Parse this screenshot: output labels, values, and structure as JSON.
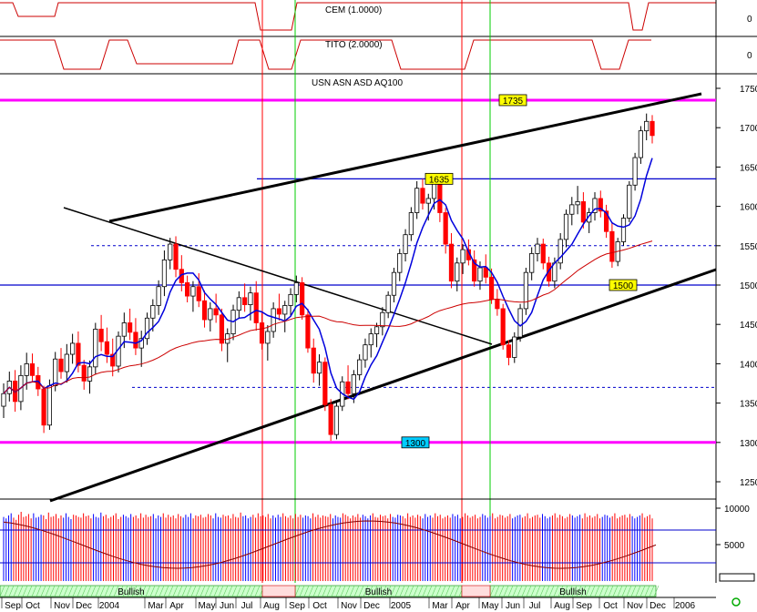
{
  "indicators": {
    "cem": {
      "label": "CEM (1.0000)",
      "axis_value": "0"
    },
    "tito": {
      "label": "TITO (2.0000)",
      "axis_value": "0"
    }
  },
  "chart_data": {
    "type": "candlestick",
    "symbol_label": "USN ASN ASD AQ100",
    "y_ticks": [
      1250,
      1300,
      1350,
      1400,
      1450,
      1500,
      1550,
      1600,
      1650,
      1700,
      1750
    ],
    "ylim": [
      1195,
      1760
    ],
    "x_ticks": [
      "Sep",
      "Oct",
      "Nov",
      "Dec",
      "2004",
      "Mar",
      "Apr",
      "May",
      "Jun",
      "Jul",
      "Aug",
      "Sep",
      "Oct",
      "Nov",
      "Dec",
      "2005",
      "Mar",
      "Apr",
      "May",
      "Jun",
      "Jul",
      "Aug",
      "Sep",
      "Oct",
      "Nov",
      "Dec",
      "2006"
    ],
    "horizontal_levels": [
      {
        "label": "1735",
        "value": 1735,
        "color": "#ff00ff"
      },
      {
        "label": "1635",
        "value": 1635,
        "color": "#0000cc"
      },
      {
        "label": "1500",
        "value": 1500,
        "color": "#0000cc"
      },
      {
        "label": "1300",
        "value": 1300,
        "color": "#ff00ff"
      }
    ],
    "dashed_levels": [
      1550,
      1370
    ],
    "signal": {
      "label": "Bullish",
      "zones": [
        "Bullish",
        "Bullish",
        "Bullish"
      ]
    },
    "volume_ticks": [
      10000,
      5000
    ],
    "volume_ylim": [
      0,
      10000
    ],
    "volume_reference": 7000,
    "volume_values": [
      8800,
      8600,
      9000,
      9300,
      8700,
      8400,
      9100,
      9500,
      8800,
      8900,
      9200,
      8600,
      9300,
      8700,
      8800,
      9100,
      9000,
      8500,
      9400,
      8800,
      8900,
      9200,
      8600,
      9000,
      8700,
      9300,
      8800,
      8500,
      9100,
      9000,
      8800,
      8700,
      9300,
      8900,
      9000,
      8600,
      9200,
      8800,
      8700,
      9400,
      8900,
      9100,
      8600,
      8800,
      9000,
      9300,
      8500,
      8800,
      9100,
      8900,
      8700,
      9200,
      8800,
      9000,
      8600,
      9300,
      8700,
      9100,
      8800,
      8900,
      9200,
      8600,
      9000,
      8800,
      9300,
      8700,
      9100,
      8800,
      9000,
      8600,
      9200,
      8900,
      8700,
      9100,
      8800,
      9300,
      8600,
      9000,
      8900,
      9100,
      8700,
      8800,
      9200,
      9000,
      8600,
      9300,
      8800,
      8700,
      9100,
      8900,
      9000,
      8600,
      9200,
      8800,
      8700,
      9400,
      8900,
      9000,
      8600,
      8800,
      9100,
      8700,
      9300,
      8900,
      9000,
      8800,
      9200,
      8600,
      9000,
      8700,
      9100,
      8800,
      9300,
      8900,
      8700,
      9000,
      8600,
      9200,
      8800,
      9100,
      8700,
      9000,
      8900,
      8600,
      9300,
      8800,
      9100,
      8700,
      9000,
      8900,
      8800,
      9200,
      8600,
      9000,
      8800,
      8700,
      9300,
      9100,
      8900,
      8600,
      9000,
      8800,
      9200,
      8700,
      9100,
      8900,
      8600,
      9000,
      9300,
      8800,
      8700,
      9100,
      8900,
      9000,
      8600,
      9200,
      8800,
      8700,
      9100,
      9000,
      8900,
      8600,
      9300,
      8800,
      9000,
      8700,
      9100,
      8900,
      8600,
      9200,
      8800,
      9000,
      8700,
      9300,
      8900,
      9100,
      8600,
      8800,
      9000,
      8700,
      9200,
      8900,
      9100,
      8600,
      8800,
      9300,
      9000,
      8700,
      8900,
      9100,
      8600,
      8800,
      9200,
      9000,
      8700,
      8900,
      9300,
      8600,
      8800,
      9100,
      9000,
      8700,
      8900,
      9200,
      8600,
      8800,
      9000,
      9100,
      8700,
      8900,
      9300,
      8600,
      8800,
      9000,
      9100,
      8700,
      9200,
      8900,
      8600,
      8800,
      9000,
      9300,
      8700,
      9100,
      8900,
      8600,
      8800,
      9200,
      9000,
      8700,
      8900,
      9100,
      8600,
      9300,
      8800,
      9000,
      8700,
      8900,
      9200,
      8600,
      8800,
      9100,
      9000,
      8700,
      8900,
      9300,
      8600,
      8800,
      9000,
      9100,
      8700,
      9200,
      8900,
      8600,
      8800,
      9000,
      9300,
      8700,
      8900,
      9100,
      8600
    ],
    "weekly": [
      [
        1346,
        1375,
        1331,
        1362
      ],
      [
        1362,
        1390,
        1352,
        1378
      ],
      [
        1378,
        1392,
        1339,
        1352
      ],
      [
        1352,
        1398,
        1341,
        1385
      ],
      [
        1385,
        1414,
        1367,
        1400
      ],
      [
        1400,
        1413,
        1378,
        1385
      ],
      [
        1385,
        1396,
        1359,
        1368
      ],
      [
        1368,
        1372,
        1312,
        1322
      ],
      [
        1322,
        1380,
        1316,
        1372
      ],
      [
        1372,
        1415,
        1365,
        1406
      ],
      [
        1406,
        1420,
        1381,
        1390
      ],
      [
        1390,
        1425,
        1376,
        1412
      ],
      [
        1412,
        1438,
        1400,
        1426
      ],
      [
        1426,
        1441,
        1389,
        1398
      ],
      [
        1398,
        1405,
        1367,
        1378
      ],
      [
        1378,
        1404,
        1362,
        1396
      ],
      [
        1396,
        1452,
        1386,
        1444
      ],
      [
        1444,
        1462,
        1416,
        1428
      ],
      [
        1428,
        1446,
        1401,
        1412
      ],
      [
        1412,
        1432,
        1384,
        1397
      ],
      [
        1397,
        1441,
        1389,
        1435
      ],
      [
        1435,
        1465,
        1420,
        1452
      ],
      [
        1452,
        1470,
        1430,
        1440
      ],
      [
        1440,
        1458,
        1411,
        1420
      ],
      [
        1420,
        1442,
        1396,
        1432
      ],
      [
        1432,
        1465,
        1424,
        1458
      ],
      [
        1458,
        1482,
        1441,
        1474
      ],
      [
        1474,
        1506,
        1462,
        1498
      ],
      [
        1498,
        1544,
        1486,
        1532
      ],
      [
        1532,
        1560,
        1520,
        1552
      ],
      [
        1552,
        1562,
        1510,
        1520
      ],
      [
        1520,
        1538,
        1492,
        1503
      ],
      [
        1503,
        1512,
        1478,
        1486
      ],
      [
        1486,
        1505,
        1466,
        1498
      ],
      [
        1498,
        1515,
        1472,
        1480
      ],
      [
        1480,
        1493,
        1446,
        1456
      ],
      [
        1456,
        1478,
        1441,
        1470
      ],
      [
        1470,
        1489,
        1452,
        1462
      ],
      [
        1462,
        1470,
        1416,
        1426
      ],
      [
        1426,
        1445,
        1402,
        1438
      ],
      [
        1438,
        1475,
        1430,
        1468
      ],
      [
        1468,
        1492,
        1457,
        1484
      ],
      [
        1484,
        1502,
        1466,
        1475
      ],
      [
        1475,
        1498,
        1455,
        1490
      ],
      [
        1490,
        1505,
        1442,
        1452
      ],
      [
        1452,
        1465,
        1418,
        1426
      ],
      [
        1426,
        1449,
        1404,
        1441
      ],
      [
        1441,
        1478,
        1433,
        1470
      ],
      [
        1470,
        1489,
        1455,
        1463
      ],
      [
        1463,
        1480,
        1440,
        1474
      ],
      [
        1474,
        1496,
        1461,
        1488
      ],
      [
        1488,
        1512,
        1478,
        1503
      ],
      [
        1503,
        1510,
        1456,
        1462
      ],
      [
        1462,
        1470,
        1414,
        1420
      ],
      [
        1420,
        1432,
        1376,
        1388
      ],
      [
        1388,
        1412,
        1372,
        1402
      ],
      [
        1402,
        1408,
        1340,
        1348
      ],
      [
        1348,
        1355,
        1302,
        1310
      ],
      [
        1310,
        1352,
        1304,
        1346
      ],
      [
        1346,
        1384,
        1340,
        1377
      ],
      [
        1377,
        1398,
        1355,
        1362
      ],
      [
        1362,
        1392,
        1350,
        1386
      ],
      [
        1386,
        1412,
        1379,
        1405
      ],
      [
        1405,
        1432,
        1395,
        1424
      ],
      [
        1424,
        1445,
        1408,
        1438
      ],
      [
        1438,
        1452,
        1421,
        1447
      ],
      [
        1447,
        1472,
        1436,
        1465
      ],
      [
        1465,
        1492,
        1458,
        1487
      ],
      [
        1487,
        1522,
        1478,
        1516
      ],
      [
        1516,
        1546,
        1505,
        1540
      ],
      [
        1540,
        1571,
        1530,
        1564
      ],
      [
        1564,
        1599,
        1556,
        1592
      ],
      [
        1592,
        1632,
        1584,
        1623
      ],
      [
        1623,
        1635,
        1596,
        1604
      ],
      [
        1604,
        1616,
        1582,
        1610
      ],
      [
        1610,
        1638,
        1596,
        1630
      ],
      [
        1630,
        1640,
        1580,
        1592
      ],
      [
        1592,
        1598,
        1540,
        1552
      ],
      [
        1552,
        1566,
        1496,
        1505
      ],
      [
        1505,
        1535,
        1492,
        1528
      ],
      [
        1528,
        1552,
        1514,
        1545
      ],
      [
        1545,
        1558,
        1525,
        1532
      ],
      [
        1532,
        1544,
        1498,
        1505
      ],
      [
        1505,
        1530,
        1494,
        1522
      ],
      [
        1522,
        1539,
        1502,
        1510
      ],
      [
        1510,
        1521,
        1476,
        1482
      ],
      [
        1482,
        1495,
        1461,
        1470
      ],
      [
        1470,
        1476,
        1418,
        1424
      ],
      [
        1424,
        1430,
        1398,
        1408
      ],
      [
        1408,
        1440,
        1401,
        1434
      ],
      [
        1434,
        1476,
        1428,
        1470
      ],
      [
        1470,
        1522,
        1462,
        1516
      ],
      [
        1516,
        1548,
        1506,
        1540
      ],
      [
        1540,
        1560,
        1530,
        1552
      ],
      [
        1552,
        1559,
        1520,
        1528
      ],
      [
        1528,
        1536,
        1498,
        1505
      ],
      [
        1505,
        1535,
        1496,
        1528
      ],
      [
        1528,
        1566,
        1520,
        1558
      ],
      [
        1558,
        1596,
        1548,
        1590
      ],
      [
        1590,
        1612,
        1576,
        1602
      ],
      [
        1602,
        1626,
        1590,
        1606
      ],
      [
        1606,
        1618,
        1572,
        1580
      ],
      [
        1580,
        1598,
        1566,
        1592
      ],
      [
        1592,
        1618,
        1582,
        1610
      ],
      [
        1610,
        1620,
        1586,
        1594
      ],
      [
        1594,
        1602,
        1560,
        1568
      ],
      [
        1568,
        1580,
        1522,
        1530
      ],
      [
        1530,
        1560,
        1524,
        1555
      ],
      [
        1555,
        1590,
        1550,
        1585
      ],
      [
        1585,
        1632,
        1580,
        1627
      ],
      [
        1627,
        1668,
        1620,
        1662
      ],
      [
        1662,
        1702,
        1654,
        1696
      ],
      [
        1696,
        1718,
        1684,
        1708
      ],
      [
        1708,
        1716,
        1680,
        1690
      ]
    ],
    "ma_color": "#0000dd",
    "long_ma_color": "#cc0000",
    "up_color": "#ffffff",
    "down_color": "#ff0000"
  }
}
